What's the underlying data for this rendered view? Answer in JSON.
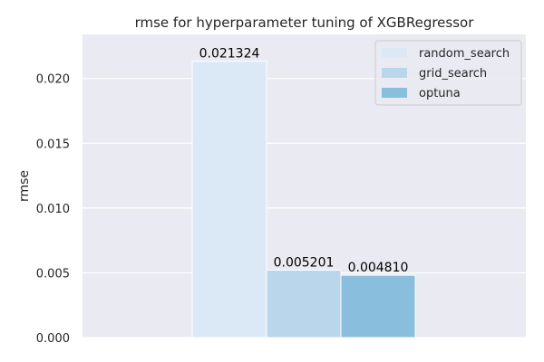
{
  "chart_data": {
    "type": "bar",
    "title": "rmse for hyperparameter tuning of XGBRegressor",
    "xlabel": "",
    "ylabel": "rmse",
    "ylim": [
      0,
      0.0234
    ],
    "yticks": [
      "0.000",
      "0.005",
      "0.010",
      "0.015",
      "0.020"
    ],
    "ytick_values": [
      0,
      0.005,
      0.01,
      0.015,
      0.02
    ],
    "grid": true,
    "legend_position": "top-right",
    "series": [
      {
        "name": "random_search",
        "value": 0.021324,
        "label": "0.021324",
        "color": "#dbe9f6"
      },
      {
        "name": "grid_search",
        "value": 0.005201,
        "label": "0.005201",
        "color": "#bad6eb"
      },
      {
        "name": "optuna",
        "value": 0.00481,
        "label": "0.004810",
        "color": "#89bedc"
      }
    ],
    "background_color": "#eaeaf2",
    "grid_color": "#ffffff"
  }
}
